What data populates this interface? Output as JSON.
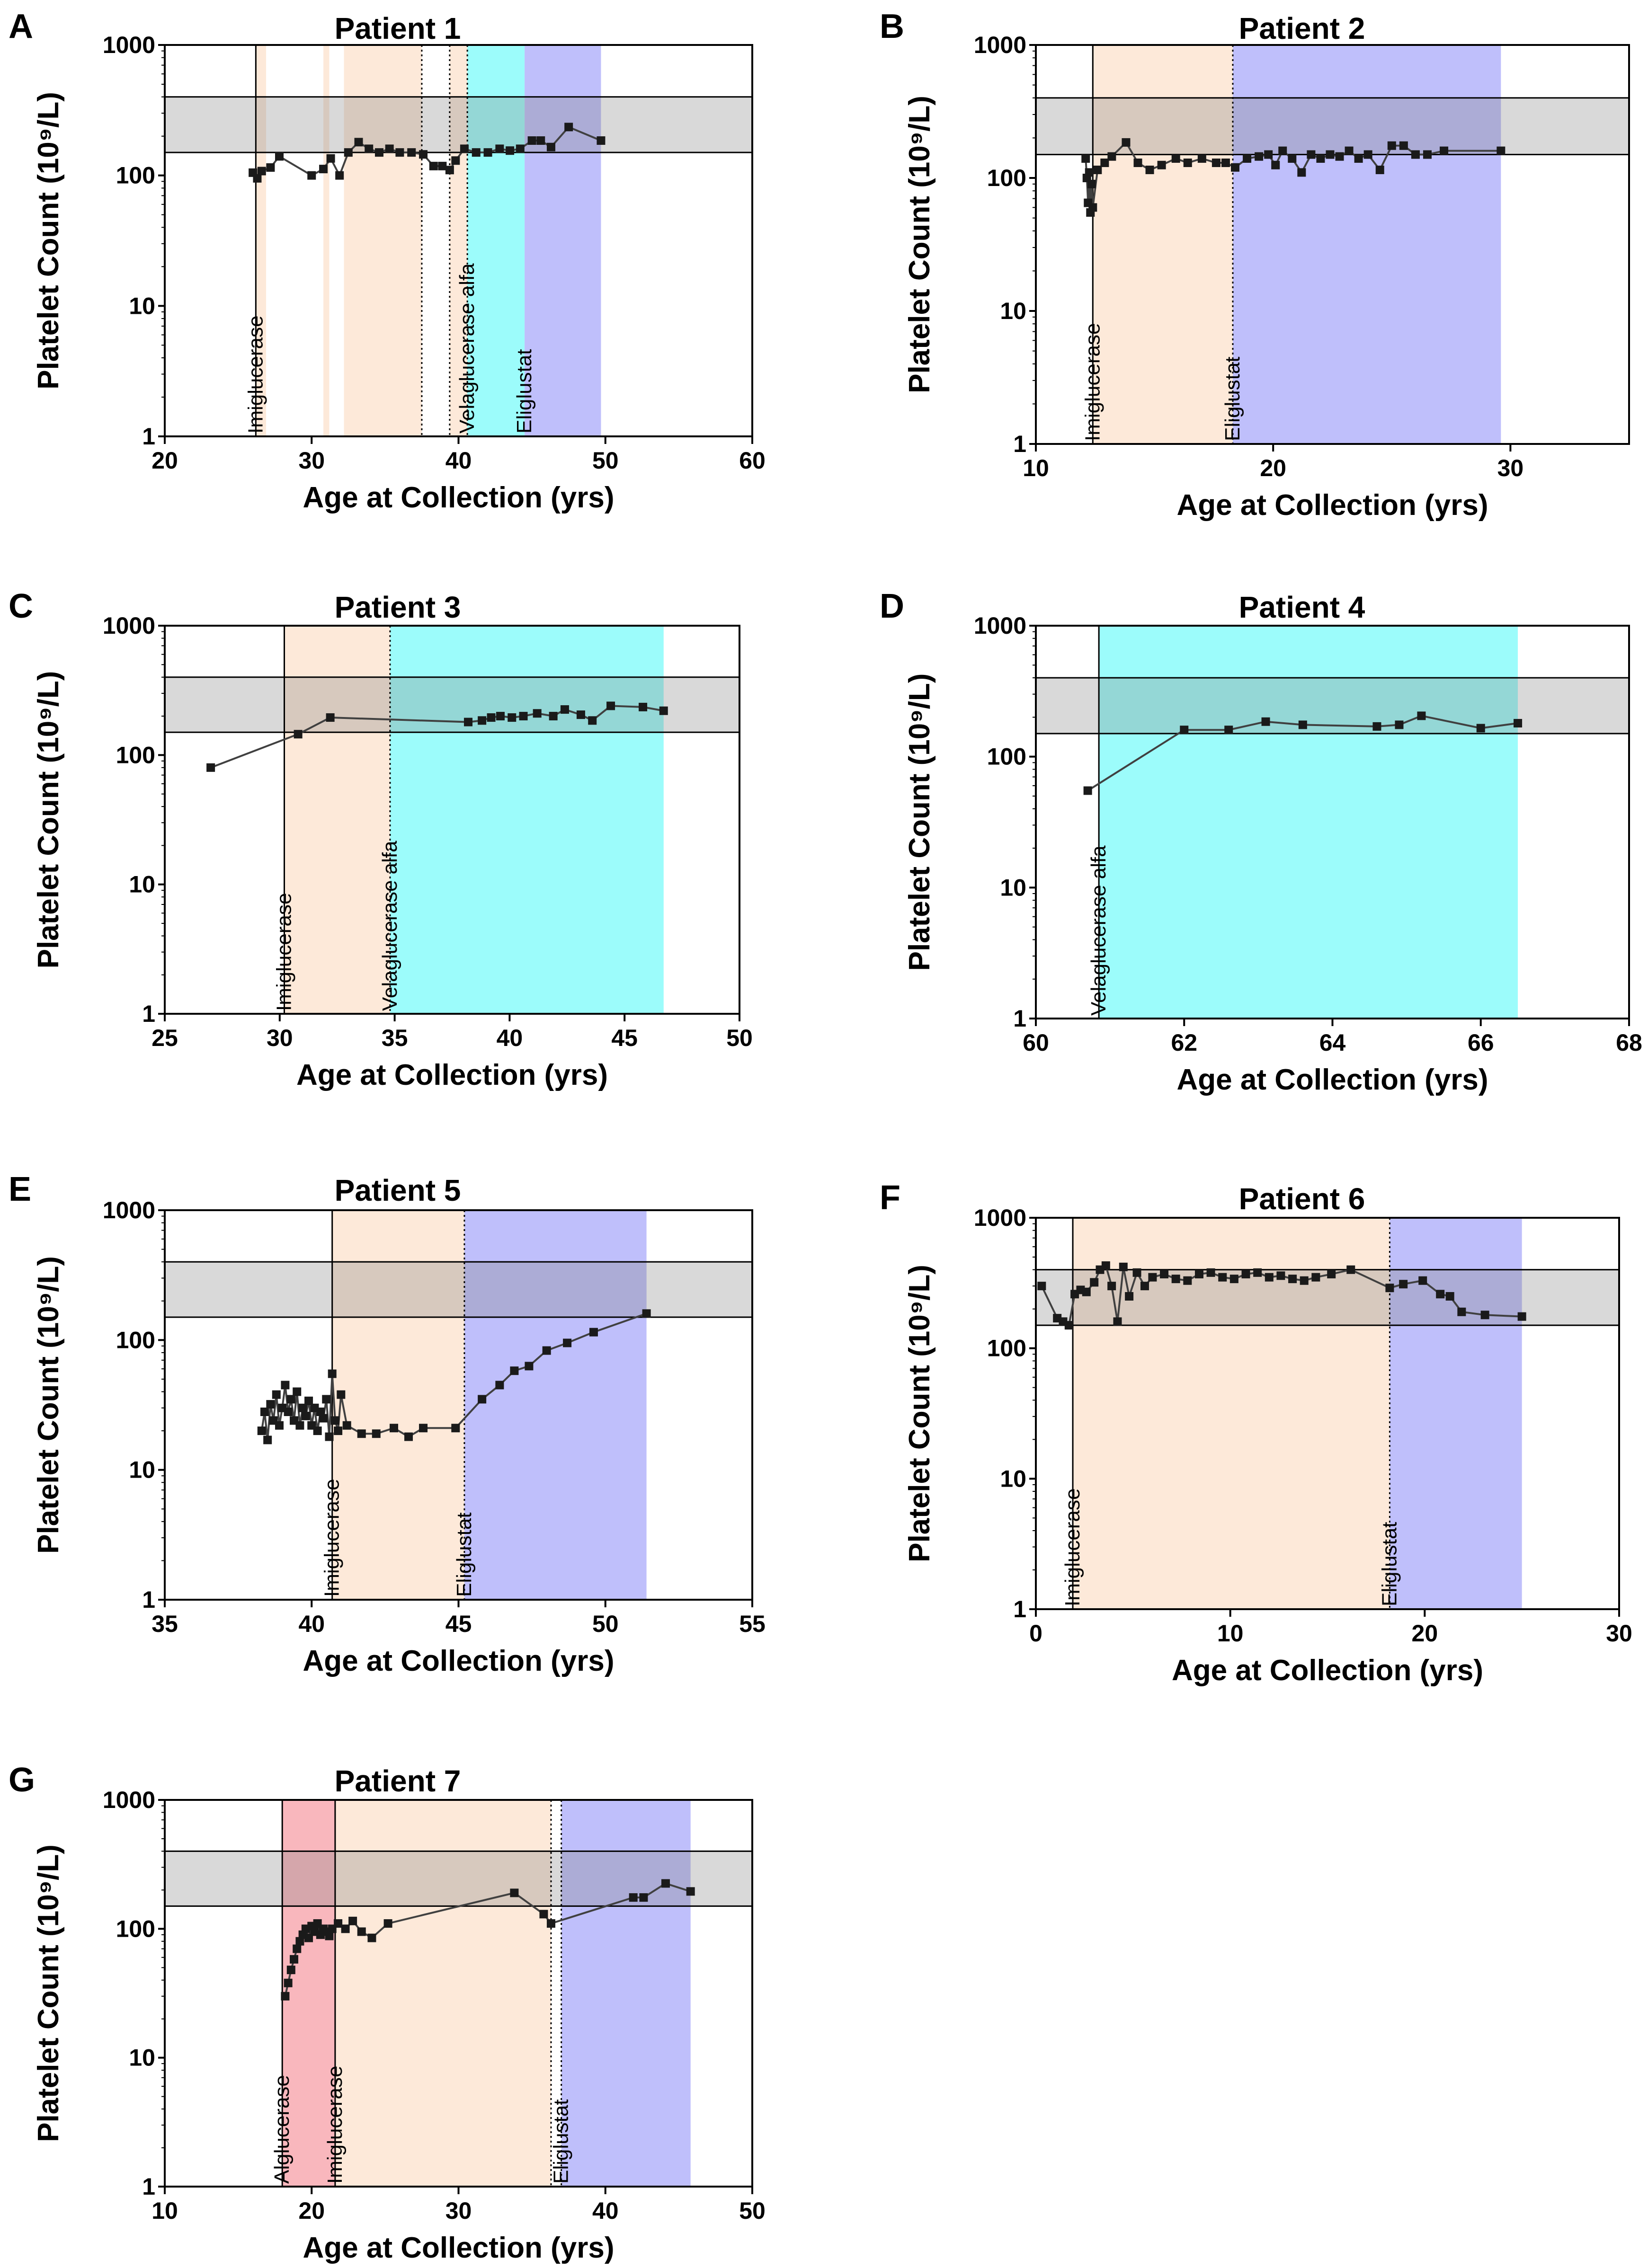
{
  "colors": {
    "imiglucerase": "#fde9d9",
    "velaglucerase_alfa": "#9cfcfb",
    "eliglustat": "#bfbffb",
    "alglucerase": "#f9b7bd",
    "normal_range": "#dcdcdc",
    "line": "#404040",
    "marker": "#1a1a1a"
  },
  "normal_range": [
    150,
    400
  ],
  "y_label": "Platelet  Count  (10⁹/L)",
  "x_label": "Age at Collection (yrs)",
  "y_ticks": [
    1,
    10,
    100,
    1000
  ],
  "chart_data": [
    {
      "type": "line",
      "panel": "A",
      "title": "Patient 1",
      "xlabel": "Age at Collection (yrs)",
      "ylabel": "Platelet  Count  (10⁹/L)",
      "yscale": "log",
      "xlim": [
        20,
        60
      ],
      "ylim": [
        1,
        1000
      ],
      "xticks": [
        20,
        30,
        40,
        50,
        60
      ],
      "treatments": [
        {
          "drug": "imiglucerase",
          "start": 26.2,
          "end": 26.9
        },
        {
          "drug": "imiglucerase",
          "start": 30.8,
          "end": 31.2
        },
        {
          "drug": "imiglucerase",
          "start": 32.2,
          "end": 37.5
        },
        {
          "drug": "imiglucerase",
          "start": 39.4,
          "end": 40.6
        },
        {
          "drug": "velaglucerase_alfa",
          "start": 40.6,
          "end": 44.5
        },
        {
          "drug": "eliglustat",
          "start": 44.5,
          "end": 49.7
        }
      ],
      "lines": [
        {
          "x": 26.2,
          "style": "solid"
        },
        {
          "x": 37.5,
          "style": "dotted"
        },
        {
          "x": 39.4,
          "style": "dotted"
        },
        {
          "x": 40.6,
          "style": "dotted"
        }
      ],
      "annotations": [
        {
          "text": "Imiglucerase",
          "x": 26.2
        },
        {
          "text": "Velaglucerase alfa",
          "x": 40.6
        },
        {
          "text": "Eliglustat",
          "x": 44.5
        }
      ],
      "series": [
        {
          "name": "Platelet count",
          "x": [
            26.0,
            26.3,
            26.6,
            27.2,
            27.8,
            30.0,
            30.8,
            31.3,
            31.9,
            32.5,
            33.2,
            33.9,
            34.6,
            35.3,
            36.0,
            36.8,
            37.6,
            38.3,
            38.9,
            39.4,
            39.8,
            40.4,
            41.2,
            42.0,
            42.8,
            43.5,
            44.2,
            45.0,
            45.6,
            46.3,
            47.5,
            49.7
          ],
          "y": [
            105,
            95,
            108,
            115,
            140,
            100,
            112,
            135,
            100,
            150,
            180,
            160,
            150,
            160,
            150,
            150,
            145,
            118,
            118,
            110,
            130,
            160,
            150,
            150,
            160,
            155,
            160,
            185,
            185,
            165,
            235,
            185
          ]
        }
      ]
    },
    {
      "type": "line",
      "panel": "B",
      "title": "Patient 2",
      "xlabel": "Age at Collection (yrs)",
      "ylabel": "Platelet  Count  (10⁹/L)",
      "yscale": "log",
      "xlim": [
        10,
        35
      ],
      "ylim": [
        1,
        1000
      ],
      "xticks": [
        10,
        20,
        30
      ],
      "treatments": [
        {
          "drug": "imiglucerase",
          "start": 12.4,
          "end": 18.3
        },
        {
          "drug": "eliglustat",
          "start": 18.3,
          "end": 29.6
        }
      ],
      "lines": [
        {
          "x": 12.4,
          "style": "solid"
        },
        {
          "x": 18.3,
          "style": "dotted"
        }
      ],
      "annotations": [
        {
          "text": "Imiglucerase",
          "x": 12.4
        },
        {
          "text": "Eliglustat",
          "x": 18.3
        }
      ],
      "series": [
        {
          "name": "Platelet count",
          "x": [
            12.1,
            12.15,
            12.2,
            12.25,
            12.3,
            12.35,
            12.4,
            12.6,
            12.9,
            13.2,
            13.8,
            14.3,
            14.8,
            15.3,
            15.9,
            16.4,
            17.0,
            17.6,
            18.0,
            18.4,
            18.9,
            19.4,
            19.8,
            20.1,
            20.4,
            20.8,
            21.2,
            21.6,
            22.0,
            22.4,
            22.8,
            23.2,
            23.6,
            24.0,
            24.5,
            25.0,
            25.5,
            26.0,
            26.5,
            27.2,
            29.6
          ],
          "y": [
            140,
            100,
            65,
            110,
            55,
            90,
            60,
            115,
            130,
            145,
            185,
            130,
            115,
            125,
            140,
            130,
            140,
            130,
            130,
            120,
            140,
            145,
            150,
            125,
            160,
            140,
            110,
            150,
            140,
            150,
            145,
            160,
            140,
            150,
            115,
            175,
            175,
            150,
            150,
            160,
            160
          ]
        }
      ]
    },
    {
      "type": "line",
      "panel": "C",
      "title": "Patient 3",
      "xlabel": "Age at Collection (yrs)",
      "ylabel": "Platelet  Count  (10⁹/L)",
      "yscale": "log",
      "xlim": [
        25,
        50
      ],
      "ylim": [
        1,
        1000
      ],
      "xticks": [
        25,
        30,
        35,
        40,
        45,
        50
      ],
      "treatments": [
        {
          "drug": "imiglucerase",
          "start": 30.2,
          "end": 34.8
        },
        {
          "drug": "velaglucerase_alfa",
          "start": 34.8,
          "end": 46.7
        }
      ],
      "lines": [
        {
          "x": 30.2,
          "style": "solid"
        },
        {
          "x": 34.8,
          "style": "dotted"
        }
      ],
      "annotations": [
        {
          "text": "Imiglucerase",
          "x": 30.2
        },
        {
          "text": "Velaglucerase alfa",
          "x": 34.8
        }
      ],
      "series": [
        {
          "name": "Platelet count",
          "x": [
            27.0,
            30.8,
            32.2,
            38.2,
            38.8,
            39.2,
            39.6,
            40.1,
            40.6,
            41.2,
            41.9,
            42.4,
            43.1,
            43.6,
            44.4,
            45.8,
            46.7
          ],
          "y": [
            80,
            145,
            195,
            180,
            185,
            195,
            200,
            195,
            200,
            210,
            200,
            225,
            205,
            185,
            240,
            235,
            220
          ]
        }
      ]
    },
    {
      "type": "line",
      "panel": "D",
      "title": "Patient 4",
      "xlabel": "Age at Collection (yrs)",
      "ylabel": "Platelet  Count  (10⁹/L)",
      "yscale": "log",
      "xlim": [
        60,
        68
      ],
      "ylim": [
        1,
        1000
      ],
      "xticks": [
        60,
        62,
        64,
        66,
        68
      ],
      "treatments": [
        {
          "drug": "velaglucerase_alfa",
          "start": 60.85,
          "end": 66.5
        }
      ],
      "lines": [
        {
          "x": 60.85,
          "style": "solid"
        }
      ],
      "annotations": [
        {
          "text": "Velaglucerase alfa",
          "x": 60.85
        }
      ],
      "series": [
        {
          "name": "Platelet count",
          "x": [
            60.7,
            62.0,
            62.6,
            63.1,
            63.6,
            64.6,
            64.9,
            65.2,
            66.0,
            66.5
          ],
          "y": [
            55,
            160,
            160,
            185,
            175,
            170,
            175,
            205,
            165,
            180
          ]
        }
      ]
    },
    {
      "type": "line",
      "panel": "E",
      "title": "Patient 5",
      "xlabel": "Age at Collection (yrs)",
      "ylabel": "Platelet  Count  (10⁹/L)",
      "yscale": "log",
      "xlim": [
        35,
        55
      ],
      "ylim": [
        1,
        1000
      ],
      "xticks": [
        35,
        40,
        45,
        50,
        55
      ],
      "treatments": [
        {
          "drug": "imiglucerase",
          "start": 40.7,
          "end": 45.2
        },
        {
          "drug": "eliglustat",
          "start": 45.2,
          "end": 51.4
        }
      ],
      "lines": [
        {
          "x": 40.7,
          "style": "solid"
        },
        {
          "x": 45.2,
          "style": "dotted"
        }
      ],
      "annotations": [
        {
          "text": "Imiglucerase",
          "x": 40.7
        },
        {
          "text": "Eliglustat",
          "x": 45.2
        }
      ],
      "series": [
        {
          "name": "Platelet count",
          "x": [
            38.3,
            38.4,
            38.5,
            38.6,
            38.7,
            38.8,
            38.9,
            39.0,
            39.1,
            39.2,
            39.3,
            39.4,
            39.5,
            39.6,
            39.7,
            39.8,
            39.9,
            40.0,
            40.1,
            40.2,
            40.3,
            40.4,
            40.5,
            40.6,
            40.7,
            40.8,
            40.9,
            41.0,
            41.2,
            41.7,
            42.2,
            42.8,
            43.3,
            43.8,
            44.9,
            45.8,
            46.4,
            46.9,
            47.4,
            48.0,
            48.7,
            49.6,
            51.4
          ],
          "y": [
            20,
            28,
            17,
            32,
            24,
            38,
            22,
            30,
            45,
            28,
            35,
            24,
            40,
            22,
            30,
            26,
            34,
            22,
            30,
            20,
            28,
            25,
            35,
            18,
            55,
            24,
            20,
            38,
            22,
            19,
            19,
            21,
            18,
            21,
            21,
            35,
            45,
            58,
            63,
            83,
            95,
            115,
            160
          ]
        }
      ]
    },
    {
      "type": "line",
      "panel": "F",
      "title": "Patient 6",
      "xlabel": "Age at Collection (yrs)",
      "ylabel": "Platelet  Count  (10⁹/L)",
      "yscale": "log",
      "xlim": [
        0,
        30
      ],
      "ylim": [
        1,
        1000
      ],
      "xticks": [
        0,
        10,
        20,
        30
      ],
      "treatments": [
        {
          "drug": "imiglucerase",
          "start": 1.9,
          "end": 18.2
        },
        {
          "drug": "eliglustat",
          "start": 18.2,
          "end": 25.0
        }
      ],
      "lines": [
        {
          "x": 1.9,
          "style": "solid"
        },
        {
          "x": 18.2,
          "style": "dotted"
        }
      ],
      "annotations": [
        {
          "text": "Imiglucerase",
          "x": 1.9
        },
        {
          "text": "Eliglustat",
          "x": 18.2
        }
      ],
      "series": [
        {
          "name": "Platelet count",
          "x": [
            0.3,
            1.1,
            1.4,
            1.7,
            2.0,
            2.3,
            2.6,
            3.0,
            3.3,
            3.6,
            3.9,
            4.2,
            4.5,
            4.8,
            5.2,
            5.6,
            6.0,
            6.6,
            7.2,
            7.8,
            8.4,
            9.0,
            9.6,
            10.2,
            10.8,
            11.4,
            12.0,
            12.6,
            13.2,
            13.8,
            14.4,
            15.2,
            16.2,
            18.2,
            18.9,
            19.9,
            20.8,
            21.3,
            21.9,
            23.1,
            25.0
          ],
          "y": [
            300,
            170,
            160,
            150,
            260,
            280,
            270,
            320,
            400,
            430,
            300,
            160,
            420,
            250,
            380,
            300,
            350,
            370,
            340,
            330,
            370,
            380,
            350,
            340,
            370,
            380,
            350,
            360,
            340,
            330,
            350,
            370,
            400,
            290,
            310,
            330,
            260,
            250,
            190,
            180,
            175
          ]
        }
      ]
    },
    {
      "type": "line",
      "panel": "G",
      "title": "Patient 7",
      "xlabel": "Age at Collection (yrs)",
      "ylabel": "Platelet  Count  (10⁹/L)",
      "yscale": "log",
      "xlim": [
        10,
        50
      ],
      "ylim": [
        1,
        1000
      ],
      "xticks": [
        10,
        20,
        30,
        40,
        50
      ],
      "treatments": [
        {
          "drug": "alglucerase",
          "start": 18.0,
          "end": 21.6
        },
        {
          "drug": "imiglucerase",
          "start": 21.6,
          "end": 36.3
        },
        {
          "drug": "eliglustat",
          "start": 37.0,
          "end": 45.8
        }
      ],
      "lines": [
        {
          "x": 18.0,
          "style": "solid"
        },
        {
          "x": 21.6,
          "style": "solid"
        },
        {
          "x": 36.3,
          "style": "dotted"
        },
        {
          "x": 37.0,
          "style": "dotted"
        }
      ],
      "annotations": [
        {
          "text": "Alglucerase",
          "x": 18.0
        },
        {
          "text": "Imiglucerase",
          "x": 21.6
        },
        {
          "text": "Eliglustat",
          "x": 37.0
        }
      ],
      "series": [
        {
          "name": "Platelet count",
          "x": [
            18.2,
            18.4,
            18.6,
            18.8,
            19.0,
            19.2,
            19.4,
            19.6,
            19.8,
            20.0,
            20.2,
            20.4,
            20.6,
            20.8,
            21.0,
            21.2,
            21.4,
            21.8,
            22.3,
            22.8,
            23.4,
            24.1,
            25.2,
            33.8,
            35.8,
            36.3,
            41.9,
            42.6,
            44.1,
            45.8
          ],
          "y": [
            30,
            38,
            48,
            58,
            70,
            80,
            90,
            100,
            85,
            105,
            95,
            110,
            90,
            100,
            95,
            88,
            100,
            110,
            100,
            115,
            95,
            85,
            110,
            190,
            130,
            110,
            175,
            175,
            225,
            195
          ]
        }
      ]
    }
  ]
}
